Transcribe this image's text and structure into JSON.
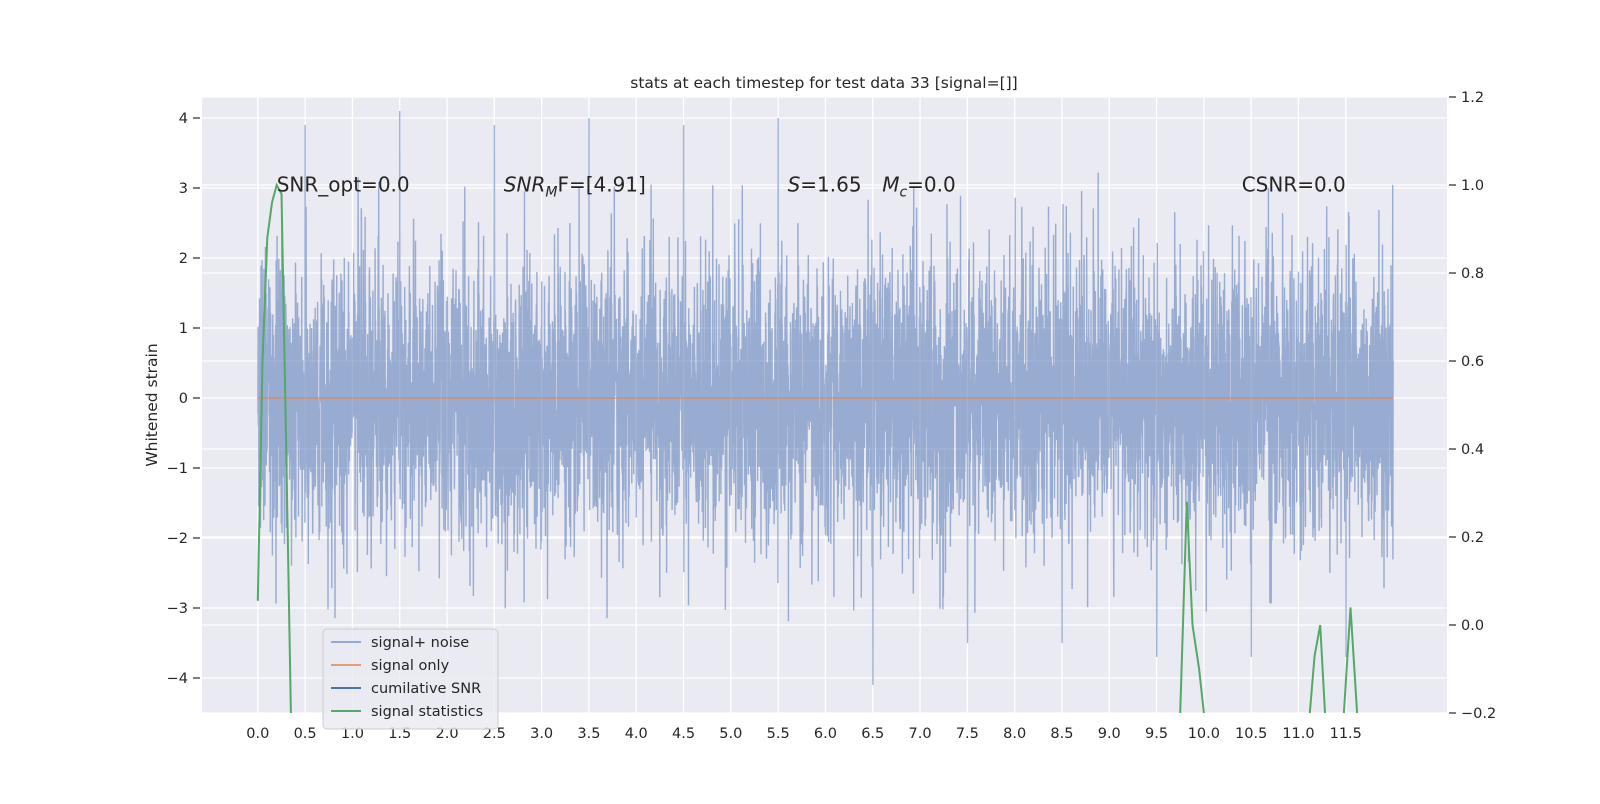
{
  "chart_data": {
    "type": "line",
    "title": "stats at each timestep for test data 33 [signal=[]]",
    "ylabel": "Whitened strain",
    "xlim": [
      -0.59,
      12.57
    ],
    "ylim": [
      -4.5,
      4.3
    ],
    "y2lim": [
      -0.2,
      1.2
    ],
    "grid": true,
    "x_ticks": [
      "0.0",
      "0.5",
      "1.0",
      "1.5",
      "2.0",
      "2.5",
      "3.0",
      "3.5",
      "4.0",
      "4.5",
      "5.0",
      "5.5",
      "6.0",
      "6.5",
      "7.0",
      "7.5",
      "8.0",
      "8.5",
      "9.0",
      "9.5",
      "10.0",
      "10.5",
      "11.0",
      "11.5"
    ],
    "y_ticks": [
      "−4",
      "−3",
      "−2",
      "−1",
      "0",
      "1",
      "2",
      "3",
      "4"
    ],
    "y2_ticks": [
      "−0.2",
      "0.0",
      "0.2",
      "0.4",
      "0.6",
      "0.8",
      "1.0",
      "1.2"
    ],
    "legend_position": "lower-left",
    "series": [
      {
        "name": "signal+ noise",
        "color": "#4c72b0",
        "axis": "left",
        "x_range": [
          0.0,
          12.0
        ],
        "spread": 1.0,
        "extremes_y": [
          3.9,
          4.1,
          3.9,
          4.0,
          3.9,
          4.0,
          -4.1,
          -3.5,
          -3.5,
          -3.7,
          -3.7,
          -3.7
        ]
      },
      {
        "name": "signal only",
        "color": "#dd8452",
        "axis": "left",
        "x": [
          0.0,
          12.0
        ],
        "y": [
          0.0,
          0.0
        ]
      },
      {
        "name": "cumilative SNR",
        "color": "#4c72b0",
        "axis": "right",
        "x": [],
        "y": []
      },
      {
        "name": "signal statistics",
        "color": "#55a868",
        "axis": "right",
        "x": [
          0.0,
          0.05,
          0.1,
          0.15,
          0.2,
          0.25,
          0.3,
          0.35,
          9.75,
          9.82,
          9.88,
          9.95,
          10.0,
          11.12,
          11.17,
          11.23,
          11.28,
          11.48,
          11.55,
          11.62
        ],
        "y": [
          0.055,
          0.6,
          0.88,
          0.96,
          1.0,
          0.98,
          0.4,
          -0.2,
          -0.2,
          0.28,
          0.0,
          -0.1,
          -0.2,
          -0.2,
          -0.07,
          -0.0,
          -0.2,
          -0.2,
          0.04,
          -0.2
        ]
      }
    ],
    "annotations": [
      {
        "text": "SNR_opt=0.0",
        "x": 0.2,
        "y": 3.05
      },
      {
        "text": "SNR",
        "sub": "M",
        "text2": "F=[4.91]",
        "italic": true,
        "x": 2.6,
        "y": 3.05
      },
      {
        "text": "S",
        "text2": "=1.65",
        "italic": true,
        "x": 5.6,
        "y": 3.05
      },
      {
        "text": "M",
        "sub": "c",
        "text2": "=0.0",
        "italic": true,
        "x": 6.6,
        "y": 3.05
      },
      {
        "text": "CSNR=0.0",
        "x": 10.4,
        "y": 3.05
      }
    ]
  }
}
